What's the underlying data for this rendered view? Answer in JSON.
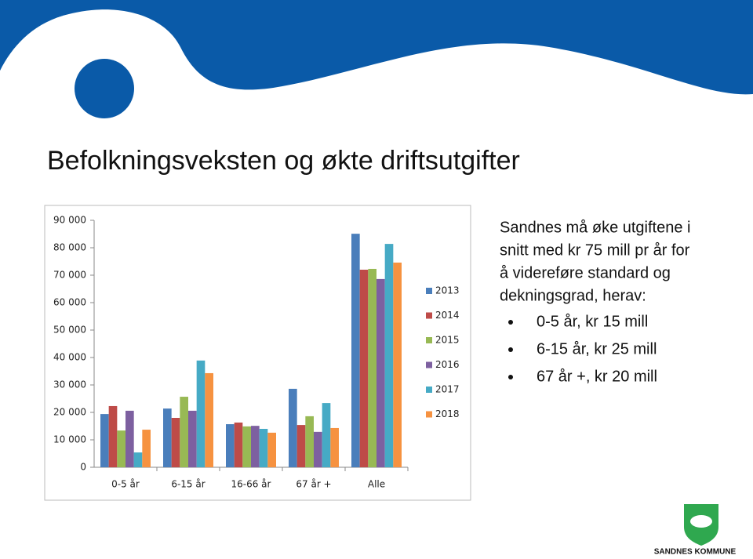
{
  "slide": {
    "title": "Befolkningsveksten og økte driftsutgifter",
    "text_lines": [
      "Sandnes må øke utgiftene i",
      "snitt med kr 75 mill pr år for",
      "å videreføre standard og",
      "dekningsgrad, herav:"
    ],
    "bullets": [
      "0-5 år, kr 15 mill",
      "6-15 år, kr 25 mill",
      "67 år +, kr 20 mill"
    ],
    "logo_text": "SANDNES KOMMUNE"
  },
  "chart_data": {
    "type": "bar",
    "categories": [
      "0-5 år",
      "6-15 år",
      "16-66 år",
      "67 år +",
      "Alle"
    ],
    "series": [
      {
        "name": "2013",
        "color": "#4a7ebb",
        "values": [
          19400,
          21400,
          15700,
          28600,
          85100
        ]
      },
      {
        "name": "2014",
        "color": "#be4b48",
        "values": [
          22300,
          18000,
          16300,
          15400,
          72000
        ]
      },
      {
        "name": "2015",
        "color": "#98b954",
        "values": [
          13400,
          25700,
          14900,
          18600,
          72300
        ]
      },
      {
        "name": "2016",
        "color": "#7d60a0",
        "values": [
          20600,
          20600,
          15100,
          12900,
          68600
        ]
      },
      {
        "name": "2017",
        "color": "#46aac5",
        "values": [
          5400,
          38900,
          14000,
          23400,
          81400
        ]
      },
      {
        "name": "2018",
        "color": "#f69240",
        "values": [
          13700,
          34300,
          12600,
          14300,
          74600
        ]
      }
    ],
    "ylim": [
      0,
      90000
    ],
    "yticks": [
      0,
      {
        "value": 10000,
        "label": "10 000"
      },
      {
        "value": 20000,
        "label": "20 000"
      },
      {
        "value": 30000,
        "label": "30 000"
      },
      {
        "value": 40000,
        "label": "40 000"
      },
      {
        "value": 50000,
        "label": "50 000"
      },
      {
        "value": 60000,
        "label": "60 000"
      },
      {
        "value": 70000,
        "label": "70 000"
      },
      {
        "value": 80000,
        "label": "80 000"
      },
      {
        "value": 90000,
        "label": "90 000"
      }
    ],
    "grid": false,
    "legend": "right"
  }
}
